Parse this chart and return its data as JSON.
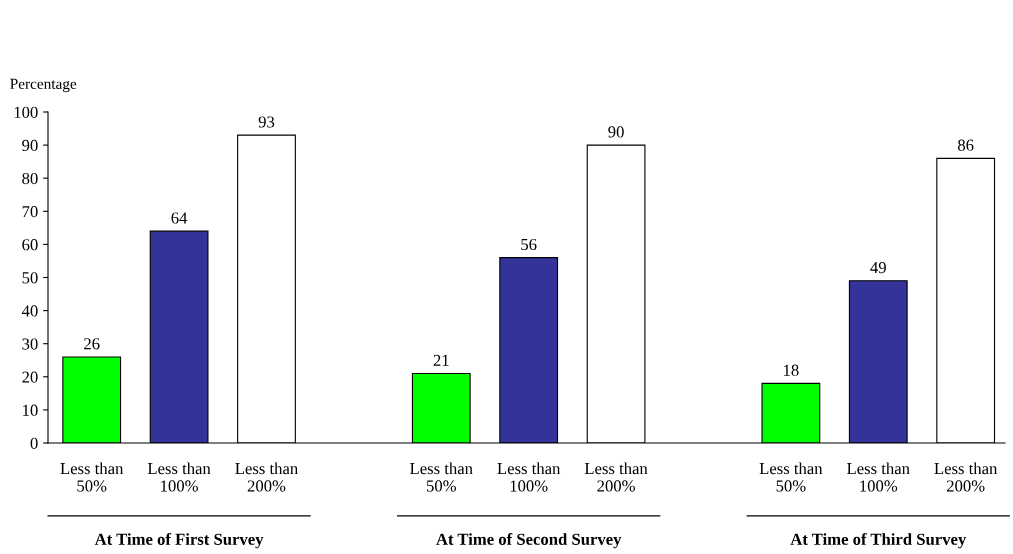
{
  "chart_data": {
    "type": "bar",
    "ylabel": "Percentage",
    "categories": [
      "Less than\n50%",
      "Less than\n100%",
      "Less than\n200%",
      "Less than\n50%",
      "Less than\n100%",
      "Less than\n200%",
      "Less than\n50%",
      "Less than\n100%",
      "Less than\n200%"
    ],
    "values": [
      26,
      64,
      93,
      21,
      56,
      90,
      18,
      49,
      86
    ],
    "colors": [
      "#00ff00",
      "#333399",
      "#ffffff",
      "#00ff00",
      "#333399",
      "#ffffff",
      "#00ff00",
      "#333399",
      "#ffffff"
    ],
    "ylim": [
      0,
      100
    ],
    "yticks": [
      0,
      10,
      20,
      30,
      40,
      50,
      60,
      70,
      80,
      90,
      100
    ],
    "data_labels": true,
    "grid": false,
    "legend": false,
    "annotations": [
      "At Time of First Survey",
      "At Time of Second Survey",
      "At Time of Third Survey"
    ]
  }
}
